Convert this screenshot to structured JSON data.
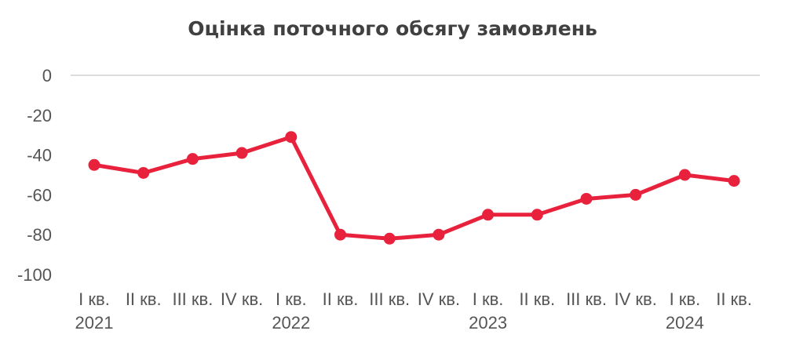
{
  "chart_data": {
    "type": "line",
    "title": "Оцінка поточного обсягу замовлень",
    "xlabel": "",
    "ylabel": "",
    "ylim": [
      -100,
      0
    ],
    "yticks": [
      0,
      -20,
      -40,
      -60,
      -80,
      -100
    ],
    "grid": false,
    "legend": "none",
    "categories": [
      "I кв.",
      "II кв.",
      "III кв.",
      "IV кв.",
      "I кв.",
      "II кв.",
      "III кв.",
      "IV кв.",
      "I кв.",
      "II кв.",
      "III кв.",
      "IV кв.",
      "I кв.",
      "II кв."
    ],
    "year_labels": [
      {
        "index": 0,
        "label": "2021"
      },
      {
        "index": 4,
        "label": "2022"
      },
      {
        "index": 8,
        "label": "2023"
      },
      {
        "index": 12,
        "label": "2024"
      }
    ],
    "series": [
      {
        "values": [
          -45,
          -49,
          -42,
          -39,
          -31,
          -80,
          -82,
          -80,
          -70,
          -70,
          -62,
          -60,
          -50,
          -53
        ],
        "color": "#e8223c"
      }
    ]
  }
}
